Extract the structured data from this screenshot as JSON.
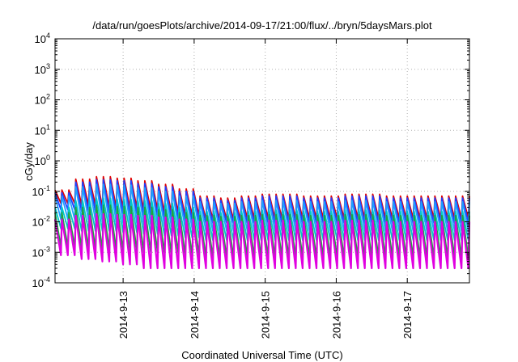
{
  "chart_data": {
    "type": "line",
    "title": "/data/run/goesPlots/archive/2014-09-17/21:00/flux/../bryn/5daysMars.plot",
    "xlabel": "Coordinated Universal Time (UTC)",
    "ylabel": "cGy/day",
    "yscale": "log",
    "ylim": [
      0.0001,
      10000
    ],
    "y_ticks": [
      {
        "value": 0.0001,
        "base": "10",
        "exp": "-4"
      },
      {
        "value": 0.001,
        "base": "10",
        "exp": "-3"
      },
      {
        "value": 0.01,
        "base": "10",
        "exp": "-2"
      },
      {
        "value": 0.1,
        "base": "10",
        "exp": "-1"
      },
      {
        "value": 1,
        "base": "10",
        "exp": "0"
      },
      {
        "value": 10,
        "base": "10",
        "exp": "1"
      },
      {
        "value": 100,
        "base": "10",
        "exp": "2"
      },
      {
        "value": 1000,
        "base": "10",
        "exp": "3"
      },
      {
        "value": 10000,
        "base": "10",
        "exp": "4"
      }
    ],
    "xlim": [
      "2014-09-12 01:00",
      "2014-09-17 21:00"
    ],
    "x_ticks": [
      "2014-9-13",
      "2014-9-14",
      "2014-9-15",
      "2014-9-16",
      "2014-9-17"
    ],
    "grid": true,
    "legend": "none",
    "series": [
      {
        "color": "#e00000",
        "peak_values": [
          0.11,
          0.25,
          0.3,
          0.27,
          0.22,
          0.17,
          0.12,
          0.07,
          0.06,
          0.07,
          0.08,
          0.08,
          0.07,
          0.07,
          0.08,
          0.08,
          0.07,
          0.07,
          0.07,
          0.07
        ],
        "trough_values": [
          0.04,
          0.035,
          0.03,
          0.028,
          0.025,
          0.02,
          0.016,
          0.012,
          0.012,
          0.013,
          0.013,
          0.013,
          0.013,
          0.013,
          0.013,
          0.013,
          0.013,
          0.013,
          0.013,
          0.013
        ]
      },
      {
        "color": "#2040ff",
        "peak_values": [
          0.09,
          0.2,
          0.24,
          0.22,
          0.18,
          0.14,
          0.1,
          0.06,
          0.05,
          0.06,
          0.07,
          0.07,
          0.06,
          0.06,
          0.07,
          0.07,
          0.06,
          0.06,
          0.06,
          0.06
        ],
        "trough_values": [
          0.025,
          0.022,
          0.02,
          0.018,
          0.016,
          0.013,
          0.011,
          0.009,
          0.009,
          0.009,
          0.009,
          0.009,
          0.009,
          0.009,
          0.009,
          0.009,
          0.009,
          0.009,
          0.009,
          0.009
        ]
      },
      {
        "color": "#20a0ff",
        "peak_values": [
          0.07,
          0.14,
          0.17,
          0.16,
          0.13,
          0.1,
          0.07,
          0.045,
          0.04,
          0.045,
          0.05,
          0.05,
          0.045,
          0.045,
          0.05,
          0.05,
          0.045,
          0.045,
          0.045,
          0.045
        ],
        "trough_values": [
          0.012,
          0.011,
          0.01,
          0.009,
          0.008,
          0.007,
          0.006,
          0.005,
          0.005,
          0.005,
          0.005,
          0.005,
          0.005,
          0.005,
          0.005,
          0.005,
          0.005,
          0.005,
          0.005,
          0.005
        ]
      },
      {
        "color": "#00c8c8",
        "peak_values": [
          0.03,
          0.05,
          0.06,
          0.055,
          0.05,
          0.04,
          0.03,
          0.022,
          0.02,
          0.022,
          0.024,
          0.024,
          0.022,
          0.022,
          0.024,
          0.024,
          0.022,
          0.022,
          0.022,
          0.022
        ],
        "trough_values": [
          0.006,
          0.005,
          0.005,
          0.0045,
          0.004,
          0.0035,
          0.003,
          0.0025,
          0.0025,
          0.0025,
          0.0025,
          0.0025,
          0.0025,
          0.0025,
          0.0025,
          0.0025,
          0.0025,
          0.0025,
          0.0025,
          0.0025
        ]
      },
      {
        "color": "#20a040",
        "peak_values": [
          0.02,
          0.03,
          0.035,
          0.032,
          0.03,
          0.025,
          0.02,
          0.016,
          0.015,
          0.016,
          0.017,
          0.017,
          0.016,
          0.016,
          0.017,
          0.017,
          0.016,
          0.016,
          0.016,
          0.016
        ],
        "trough_values": [
          0.0015,
          0.0013,
          0.0012,
          0.0011,
          0.001,
          0.0009,
          0.0008,
          0.0007,
          0.0007,
          0.0007,
          0.0007,
          0.0007,
          0.0007,
          0.0007,
          0.0007,
          0.0007,
          0.0007,
          0.0007,
          0.0007,
          0.0007
        ]
      },
      {
        "color": "#e000e0",
        "peak_values": [
          0.012,
          0.016,
          0.018,
          0.017,
          0.016,
          0.014,
          0.012,
          0.01,
          0.01,
          0.01,
          0.011,
          0.011,
          0.01,
          0.01,
          0.011,
          0.011,
          0.01,
          0.01,
          0.01,
          0.01
        ],
        "trough_values": [
          0.0008,
          0.0006,
          0.0005,
          0.0004,
          0.0003,
          0.0003,
          0.0003,
          0.0003,
          0.0003,
          0.0003,
          0.0003,
          0.0003,
          0.0003,
          0.0003,
          0.0003,
          0.0003,
          0.0003,
          0.0003,
          0.0003,
          0.0003
        ]
      }
    ]
  }
}
